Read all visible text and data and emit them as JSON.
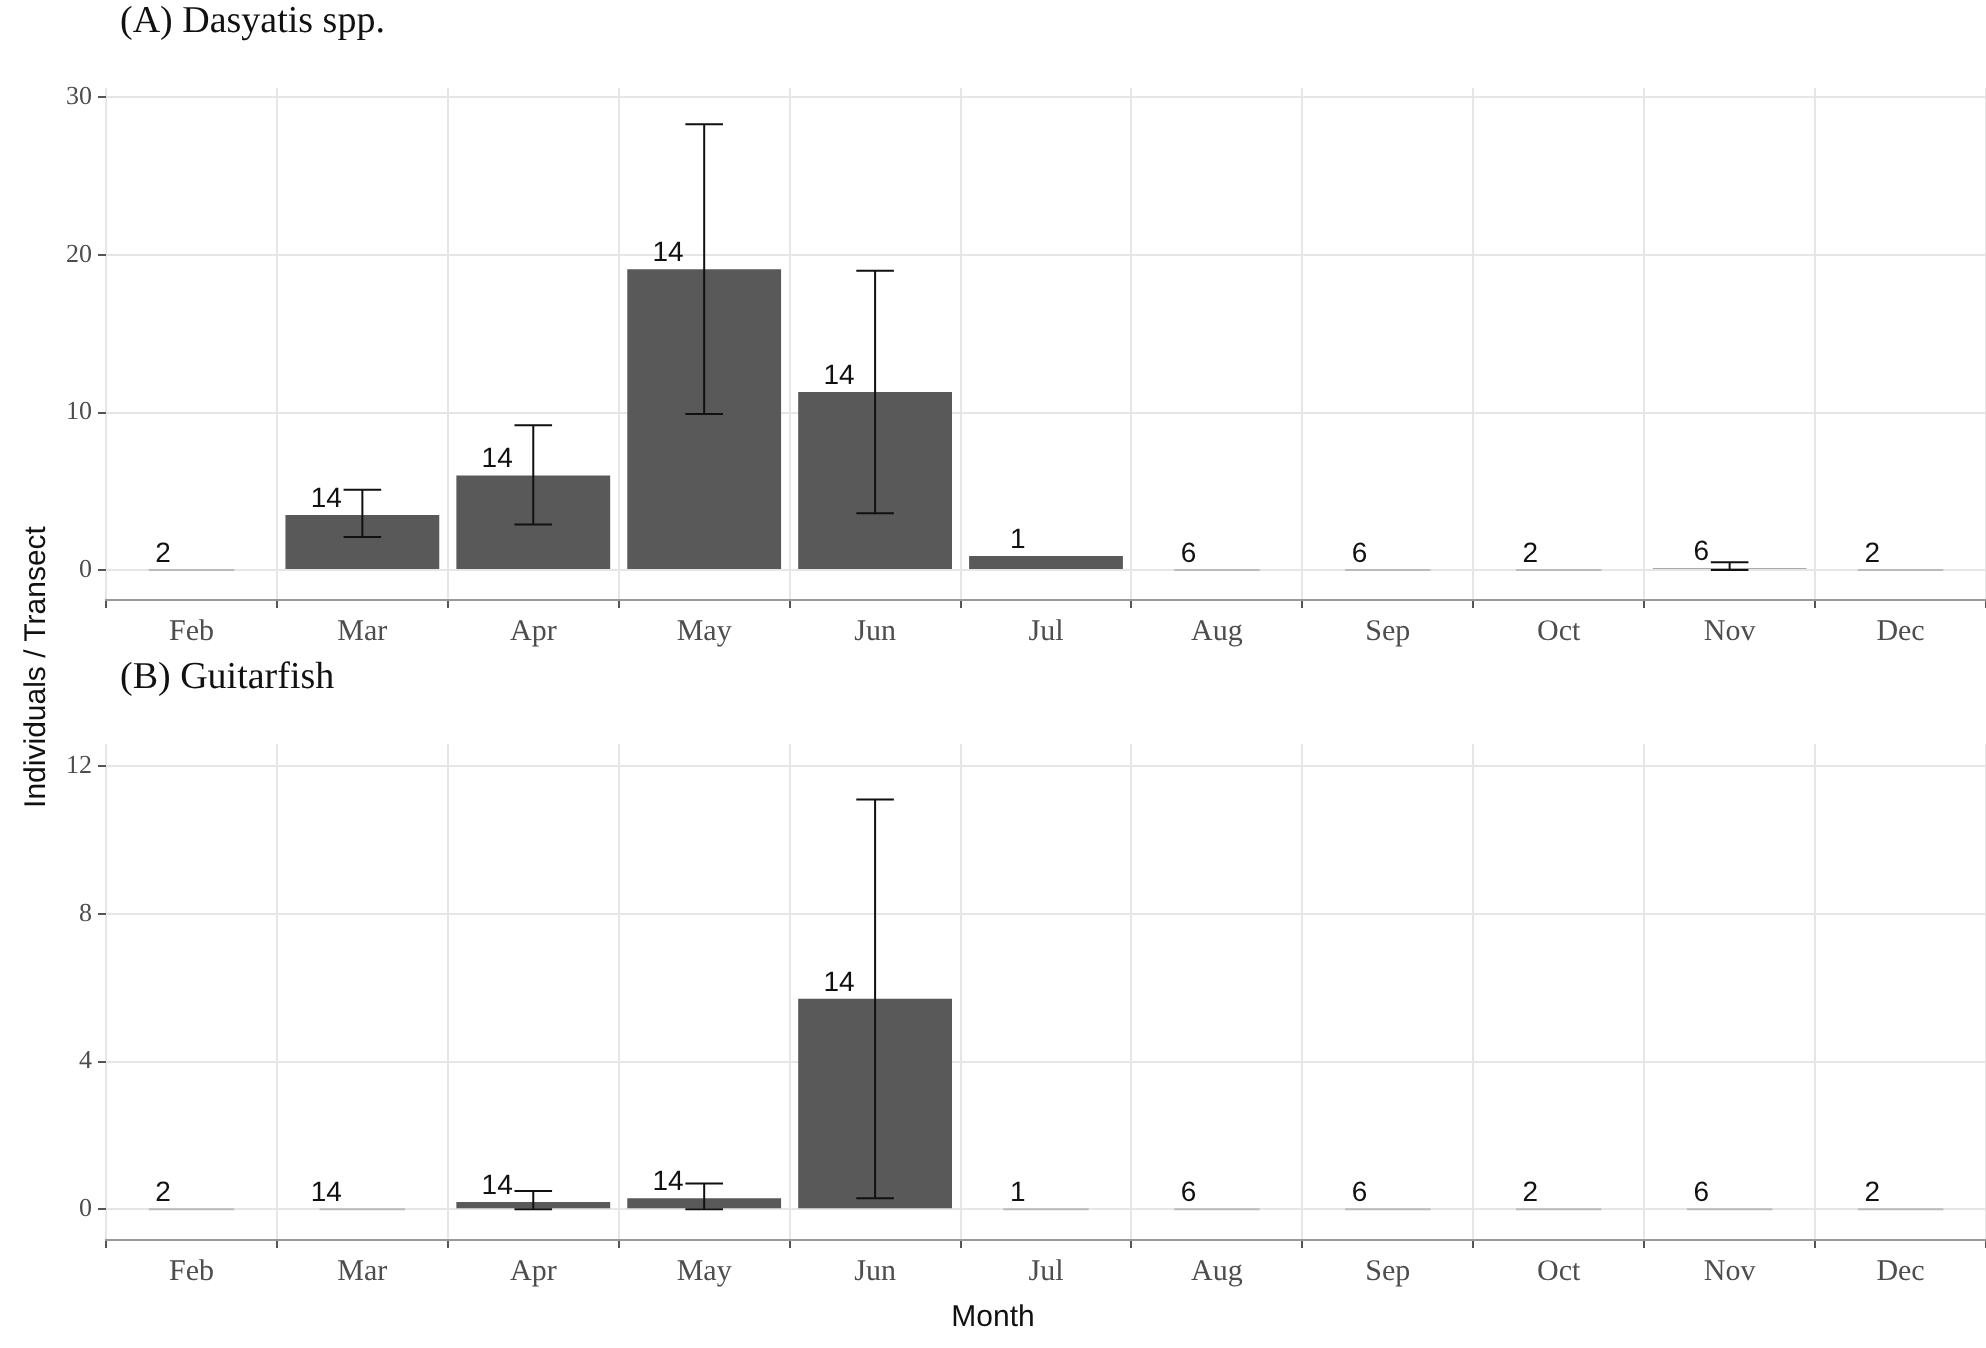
{
  "chart_data": [
    {
      "type": "bar",
      "title": "(A) Dasyatis spp.",
      "ylabel": "Individuals / Transect",
      "categories": [
        "Feb",
        "Mar",
        "Apr",
        "May",
        "Jun",
        "Jul",
        "Aug",
        "Sep",
        "Oct",
        "Nov",
        "Dec"
      ],
      "series": [
        {
          "color": "#595959",
          "values": [
            0,
            3.5,
            6.0,
            19.1,
            11.3,
            0.9,
            0,
            0,
            0,
            0.1,
            0
          ],
          "errors": [
            null,
            [
              2.1,
              5.1
            ],
            [
              2.9,
              9.2
            ],
            [
              9.9,
              28.3
            ],
            [
              3.6,
              19.0
            ],
            null,
            null,
            null,
            null,
            [
              0,
              0.5
            ],
            null
          ]
        }
      ],
      "ylim": [
        -1.9,
        30.6
      ],
      "yticks": [
        0,
        10,
        20,
        30
      ],
      "grid": true,
      "legend": false,
      "annotations": [
        {
          "text": "2",
          "x": "Feb",
          "y": 0
        },
        {
          "text": "14",
          "x": "Mar",
          "y": 3.5
        },
        {
          "text": "14",
          "x": "Apr",
          "y": 6.0
        },
        {
          "text": "14",
          "x": "May",
          "y": 19.1
        },
        {
          "text": "14",
          "x": "Jun",
          "y": 11.3
        },
        {
          "text": "1",
          "x": "Jul",
          "y": 0.9
        },
        {
          "text": "6",
          "x": "Aug",
          "y": 0
        },
        {
          "text": "6",
          "x": "Sep",
          "y": 0
        },
        {
          "text": "2",
          "x": "Oct",
          "y": 0
        },
        {
          "text": "6",
          "x": "Nov",
          "y": 0.1
        },
        {
          "text": "2",
          "x": "Dec",
          "y": 0
        }
      ]
    },
    {
      "type": "bar",
      "title": "(B) Guitarfish",
      "xlabel": "Month",
      "categories": [
        "Feb",
        "Mar",
        "Apr",
        "May",
        "Jun",
        "Jul",
        "Aug",
        "Sep",
        "Oct",
        "Nov",
        "Dec"
      ],
      "series": [
        {
          "color": "#595959",
          "values": [
            0,
            0,
            0.2,
            0.3,
            5.7,
            0,
            0,
            0,
            0,
            0,
            0
          ],
          "errors": [
            null,
            null,
            [
              0,
              0.5
            ],
            [
              0,
              0.7
            ],
            [
              0.3,
              11.1
            ],
            null,
            null,
            null,
            null,
            null,
            null
          ]
        }
      ],
      "ylim": [
        -0.83,
        12.6
      ],
      "yticks": [
        0,
        4,
        8,
        12
      ],
      "grid": true,
      "legend": false,
      "annotations": [
        {
          "text": "2",
          "x": "Feb",
          "y": 0
        },
        {
          "text": "14",
          "x": "Mar",
          "y": 0
        },
        {
          "text": "14",
          "x": "Apr",
          "y": 0.2
        },
        {
          "text": "14",
          "x": "May",
          "y": 0.3
        },
        {
          "text": "14",
          "x": "Jun",
          "y": 5.7
        },
        {
          "text": "1",
          "x": "Jul",
          "y": 0
        },
        {
          "text": "6",
          "x": "Aug",
          "y": 0
        },
        {
          "text": "6",
          "x": "Sep",
          "y": 0
        },
        {
          "text": "2",
          "x": "Oct",
          "y": 0
        },
        {
          "text": "6",
          "x": "Nov",
          "y": 0
        },
        {
          "text": "2",
          "x": "Dec",
          "y": 0
        }
      ]
    }
  ]
}
